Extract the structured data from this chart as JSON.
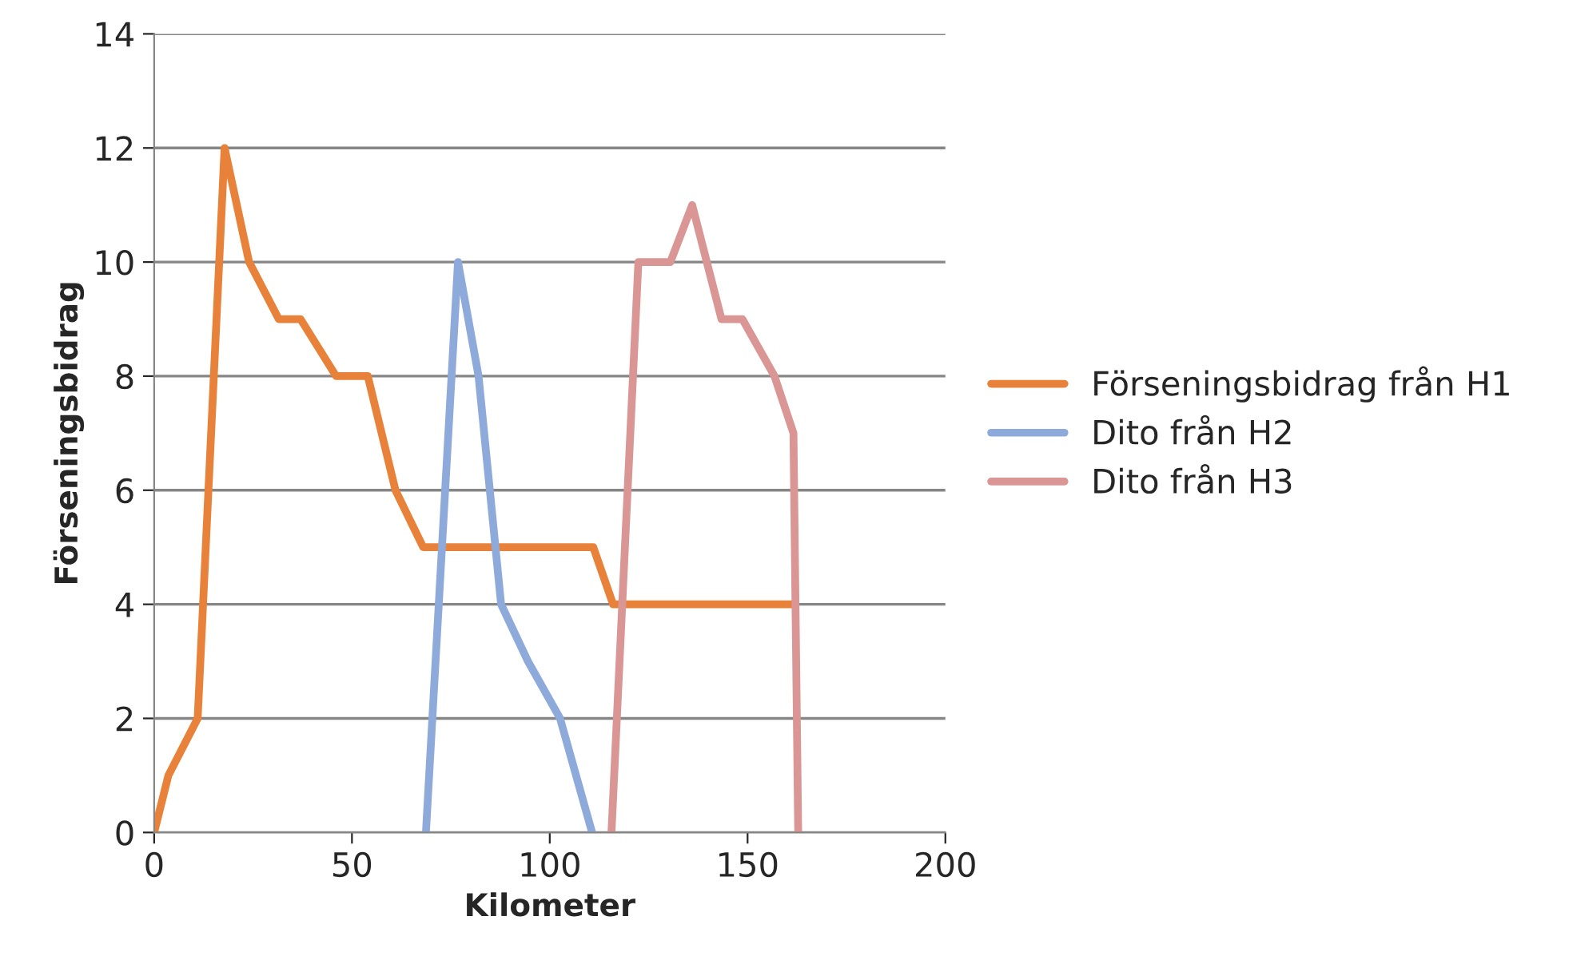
{
  "chart_data": {
    "type": "line",
    "xlabel": "Kilometer",
    "ylabel": "Förseningsbidrag",
    "series": [
      {
        "name": "Förseningsbidrag från H1",
        "color": "#e8823a",
        "x": [
          0,
          3.6,
          11,
          17.8,
          24,
          31.5,
          37,
          46,
          54,
          61,
          68,
          111,
          116,
          161.6
        ],
        "values": [
          0,
          1,
          2,
          12,
          10,
          9,
          9,
          8,
          8,
          6,
          5,
          5,
          4,
          4
        ]
      },
      {
        "name": "Dito från H2",
        "color": "#8eaadb",
        "x": [
          68.7,
          76.8,
          82,
          87.7,
          94.5,
          102.6,
          110.7
        ],
        "values": [
          0,
          10,
          8,
          4,
          3,
          2,
          0
        ]
      },
      {
        "name": "Dito från H3",
        "color": "#d99694",
        "x": [
          115.6,
          122.4,
          130.5,
          136,
          143.4,
          148.7,
          156.8,
          161.6,
          162.8
        ],
        "values": [
          0,
          10,
          10,
          11,
          9,
          9,
          8,
          7,
          0
        ]
      }
    ],
    "xlim": [
      0,
      200
    ],
    "xticks": [
      0,
      50,
      100,
      150,
      200
    ],
    "ylim": [
      0,
      14
    ],
    "yticks": [
      0,
      2,
      4,
      6,
      8,
      10,
      12,
      14
    ],
    "grid": "y",
    "legend": "right",
    "marker": "none",
    "line_style": "solid"
  }
}
